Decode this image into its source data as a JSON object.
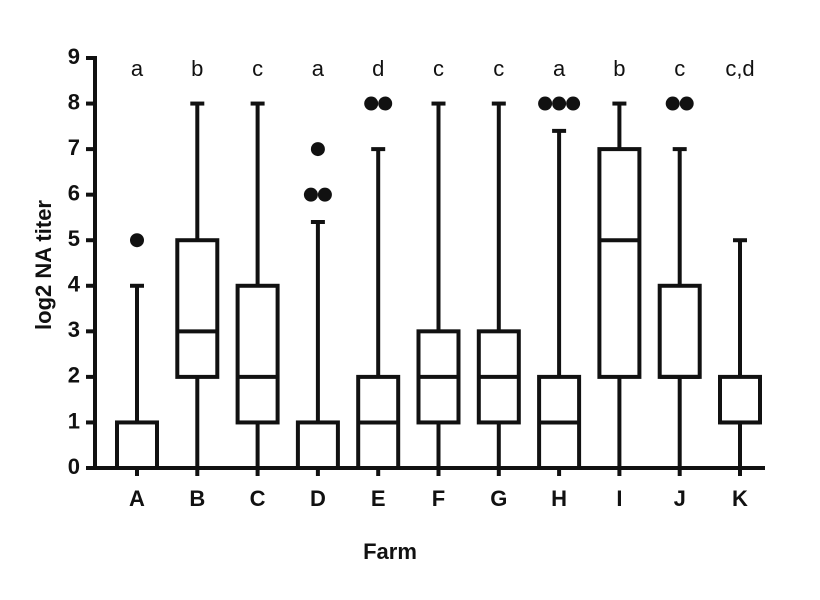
{
  "chart_data": {
    "type": "box",
    "x_label": "Farm",
    "y_label": "log2 NA titer",
    "categories": [
      "A",
      "B",
      "C",
      "D",
      "E",
      "F",
      "G",
      "H",
      "I",
      "J",
      "K"
    ],
    "min": [
      0,
      0,
      0,
      0,
      0,
      0,
      0,
      0,
      0,
      0,
      0
    ],
    "q1": [
      0,
      2,
      1,
      0,
      0,
      1,
      1,
      0,
      2,
      2,
      1
    ],
    "median": [
      0,
      3,
      2,
      0,
      1,
      2,
      2,
      1,
      5,
      2,
      1
    ],
    "q3": [
      1,
      5,
      4,
      1,
      2,
      3,
      3,
      2,
      7,
      4,
      2
    ],
    "max": [
      4,
      8,
      8,
      5.4,
      7,
      8,
      8,
      7.4,
      8,
      7,
      5
    ],
    "outliers": [
      [
        5
      ],
      [],
      [],
      [
        7,
        6,
        6
      ],
      [
        8,
        8
      ],
      [],
      [],
      [
        8,
        8,
        8
      ],
      [],
      [
        8,
        8
      ],
      []
    ],
    "letters": [
      "a",
      "b",
      "c",
      "a",
      "d",
      "c",
      "c",
      "a",
      "b",
      "c",
      "c,d"
    ],
    "ylim": [
      0,
      9
    ],
    "yticks": [
      0,
      1,
      2,
      3,
      4,
      5,
      6,
      7,
      8,
      9
    ]
  }
}
